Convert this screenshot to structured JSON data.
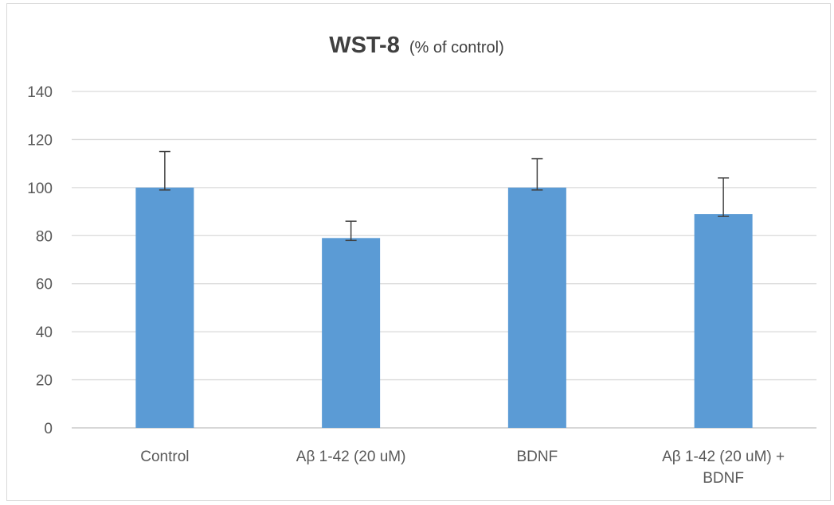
{
  "chart_data": {
    "type": "bar",
    "title": "WST-8",
    "subtitle": "(% of control)",
    "categories": [
      [
        "Control"
      ],
      [
        "Aβ 1-42 (20 uM)"
      ],
      [
        "BDNF"
      ],
      [
        "Aβ 1-42 (20 uM) +",
        "BDNF"
      ]
    ],
    "values": [
      100,
      79,
      100,
      89
    ],
    "error_upper": [
      115,
      86,
      112,
      104
    ],
    "error_lower": [
      99,
      78,
      99,
      88
    ],
    "ylim": [
      0,
      140
    ],
    "yticks": [
      0,
      20,
      40,
      60,
      80,
      100,
      120,
      140
    ],
    "grid": true,
    "legend": "none",
    "bar_color": "#5b9bd5",
    "grid_color": "#d9d9d9",
    "error_color": "#404040"
  }
}
